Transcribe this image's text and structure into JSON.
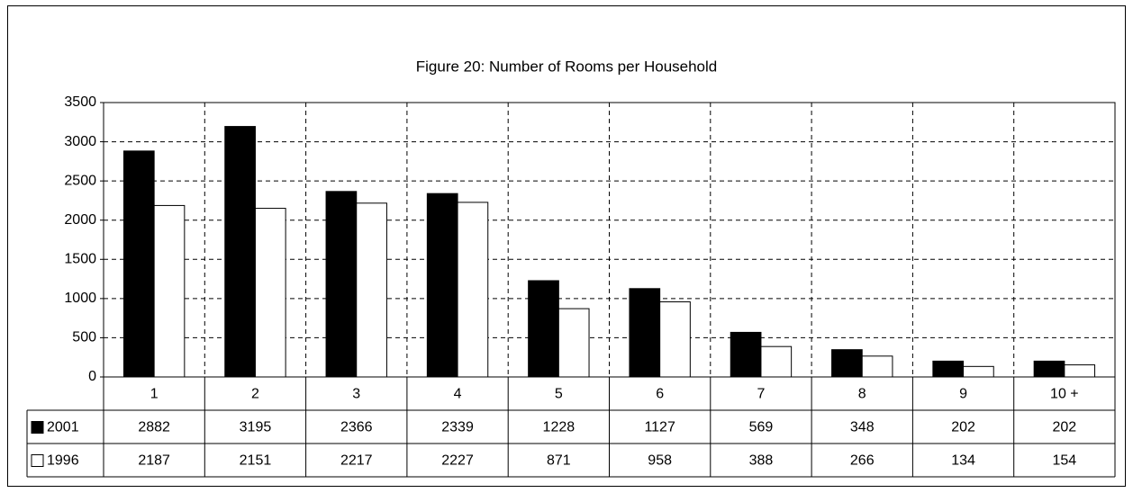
{
  "chart_data": {
    "type": "bar",
    "title": "Figure 20: Number of Rooms per Household",
    "categories": [
      "1",
      "2",
      "3",
      "4",
      "5",
      "6",
      "7",
      "8",
      "9",
      "10 +"
    ],
    "series": [
      {
        "name": "2001",
        "color": "#000000",
        "values": [
          2882,
          3195,
          2366,
          2339,
          1228,
          1127,
          569,
          348,
          202,
          202
        ]
      },
      {
        "name": "1996",
        "color": "#ffffff",
        "values": [
          2187,
          2151,
          2217,
          2227,
          871,
          958,
          388,
          266,
          134,
          154
        ]
      }
    ],
    "ylim": [
      0,
      3500
    ],
    "yticks": [
      0,
      500,
      1000,
      1500,
      2000,
      2500,
      3000,
      3500
    ],
    "grid": true
  }
}
